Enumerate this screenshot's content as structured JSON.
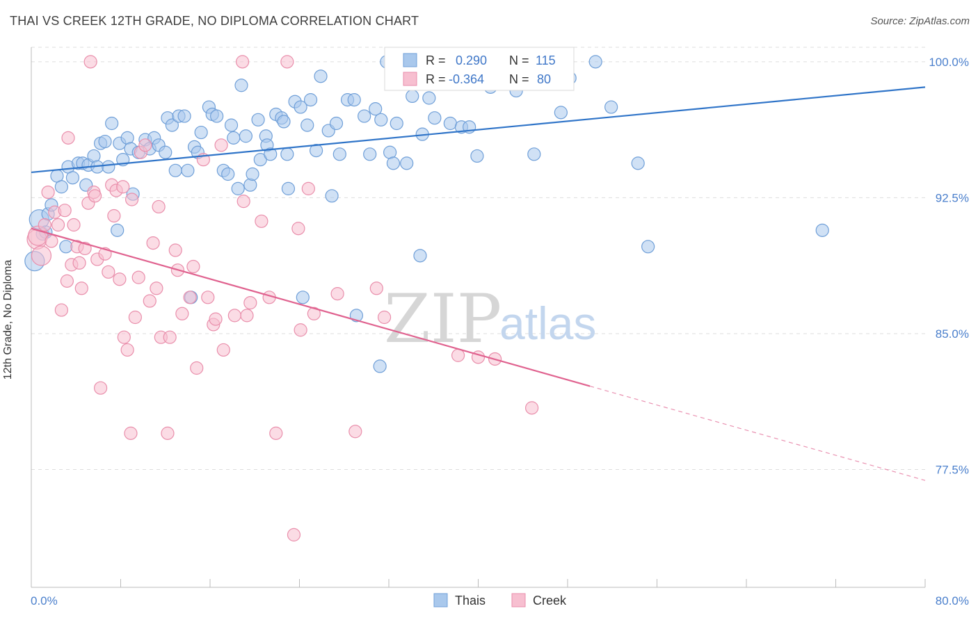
{
  "title": "THAI VS CREEK 12TH GRADE, NO DIPLOMA CORRELATION CHART",
  "source": "Source: ZipAtlas.com",
  "watermark": {
    "zip": "ZIP",
    "atlas": "atlas"
  },
  "colors": {
    "thais_fill": "#a9c8ec",
    "thais_stroke": "#6f9fd8",
    "thais_line": "#2f74c8",
    "creek_fill": "#f7bfd0",
    "creek_stroke": "#e98eab",
    "creek_line": "#e0628f",
    "tick_label": "#4a7fcc",
    "grid": "#dddddd"
  },
  "legend_top": {
    "thais": {
      "r_label": "R =",
      "r_value": "0.290",
      "n_label": "N =",
      "n_value": "115"
    },
    "creek": {
      "r_label": "R =",
      "r_value": "-0.364",
      "n_label": "N =",
      "n_value": "80"
    }
  },
  "legend_bottom": {
    "thais": "Thais",
    "creek": "Creek"
  },
  "chart_data": {
    "type": "scatter",
    "title": "THAI VS CREEK 12TH GRADE, NO DIPLOMA CORRELATION CHART",
    "xlabel": "",
    "ylabel": "12th Grade, No Diploma",
    "xlim": [
      0,
      80
    ],
    "ylim": [
      71,
      100.8
    ],
    "x_tick_labels": [
      "0.0%",
      "80.0%"
    ],
    "y_ticks": [
      77.5,
      85.0,
      92.5,
      100.0
    ],
    "y_tick_labels": [
      "77.5%",
      "85.0%",
      "92.5%",
      "100.0%"
    ],
    "grid": true,
    "legend_placement": "top-center",
    "series": [
      {
        "name": "Thais",
        "trend": {
          "x": [
            0,
            80
          ],
          "y": [
            93.9,
            98.6
          ]
        },
        "points": [
          [
            0.3,
            89.0
          ],
          [
            0.7,
            91.3
          ],
          [
            1.0,
            90.5
          ],
          [
            1.3,
            90.6
          ],
          [
            1.5,
            91.6
          ],
          [
            1.8,
            92.1
          ],
          [
            2.3,
            93.7
          ],
          [
            2.7,
            93.1
          ],
          [
            3.1,
            89.8
          ],
          [
            3.3,
            94.2
          ],
          [
            3.7,
            93.6
          ],
          [
            4.2,
            94.4
          ],
          [
            4.6,
            94.4
          ],
          [
            4.9,
            93.2
          ],
          [
            5.1,
            94.3
          ],
          [
            5.6,
            94.8
          ],
          [
            5.9,
            94.2
          ],
          [
            6.2,
            95.5
          ],
          [
            6.6,
            95.6
          ],
          [
            6.9,
            94.2
          ],
          [
            7.2,
            96.6
          ],
          [
            7.7,
            90.7
          ],
          [
            7.9,
            95.5
          ],
          [
            8.2,
            94.6
          ],
          [
            8.6,
            95.8
          ],
          [
            8.9,
            95.2
          ],
          [
            9.1,
            92.7
          ],
          [
            9.6,
            95.0
          ],
          [
            10.2,
            95.7
          ],
          [
            10.6,
            95.2
          ],
          [
            11.0,
            95.8
          ],
          [
            11.4,
            95.4
          ],
          [
            12.0,
            95.0
          ],
          [
            12.2,
            96.9
          ],
          [
            12.6,
            96.5
          ],
          [
            12.9,
            94.0
          ],
          [
            13.2,
            97.0
          ],
          [
            13.7,
            97.0
          ],
          [
            14.0,
            94.0
          ],
          [
            14.3,
            87.0
          ],
          [
            14.6,
            95.3
          ],
          [
            14.9,
            95.0
          ],
          [
            15.2,
            96.1
          ],
          [
            15.9,
            97.5
          ],
          [
            16.2,
            97.1
          ],
          [
            16.6,
            97.0
          ],
          [
            17.2,
            94.0
          ],
          [
            17.6,
            93.8
          ],
          [
            17.9,
            96.5
          ],
          [
            18.1,
            95.8
          ],
          [
            18.5,
            93.0
          ],
          [
            18.8,
            98.7
          ],
          [
            19.2,
            95.9
          ],
          [
            19.6,
            93.2
          ],
          [
            19.8,
            93.8
          ],
          [
            20.3,
            96.8
          ],
          [
            20.5,
            94.6
          ],
          [
            21.0,
            95.9
          ],
          [
            21.1,
            95.4
          ],
          [
            21.4,
            94.9
          ],
          [
            21.9,
            97.1
          ],
          [
            22.4,
            96.9
          ],
          [
            22.6,
            96.7
          ],
          [
            22.9,
            94.9
          ],
          [
            23.0,
            93.0
          ],
          [
            23.6,
            97.8
          ],
          [
            24.1,
            97.5
          ],
          [
            24.3,
            87.0
          ],
          [
            24.7,
            96.5
          ],
          [
            25.0,
            97.9
          ],
          [
            25.5,
            95.1
          ],
          [
            25.9,
            99.2
          ],
          [
            26.6,
            96.2
          ],
          [
            26.9,
            92.6
          ],
          [
            27.3,
            96.6
          ],
          [
            27.6,
            94.9
          ],
          [
            28.3,
            97.9
          ],
          [
            28.9,
            97.9
          ],
          [
            29.1,
            86.0
          ],
          [
            29.8,
            97.0
          ],
          [
            30.3,
            94.9
          ],
          [
            30.8,
            97.4
          ],
          [
            31.2,
            83.2
          ],
          [
            31.3,
            96.8
          ],
          [
            31.8,
            100.0
          ],
          [
            32.1,
            95.0
          ],
          [
            32.4,
            94.4
          ],
          [
            32.7,
            96.6
          ],
          [
            33.2,
            99.6
          ],
          [
            33.6,
            94.4
          ],
          [
            34.1,
            98.1
          ],
          [
            34.3,
            100.0
          ],
          [
            34.8,
            89.3
          ],
          [
            35.0,
            96.0
          ],
          [
            35.6,
            98.0
          ],
          [
            36.1,
            96.9
          ],
          [
            36.6,
            99.0
          ],
          [
            37.5,
            96.6
          ],
          [
            38.5,
            96.4
          ],
          [
            39.2,
            96.4
          ],
          [
            39.8,
            99.3
          ],
          [
            39.9,
            94.8
          ],
          [
            40.6,
            100.0
          ],
          [
            41.1,
            98.6
          ],
          [
            42.6,
            99.2
          ],
          [
            43.4,
            98.4
          ],
          [
            45.0,
            94.9
          ],
          [
            47.4,
            97.2
          ],
          [
            48.2,
            99.1
          ],
          [
            50.5,
            100.0
          ],
          [
            51.9,
            97.5
          ],
          [
            54.3,
            94.4
          ],
          [
            55.2,
            89.8
          ],
          [
            70.8,
            90.7
          ],
          [
            65.0,
            101.0
          ]
        ]
      },
      {
        "name": "Creek",
        "trend": {
          "x": [
            0,
            50
          ],
          "y": [
            90.8,
            82.1
          ],
          "dash_x": [
            50,
            80
          ],
          "dash_y": [
            82.1,
            76.9
          ]
        },
        "points": [
          [
            0.5,
            90.2
          ],
          [
            0.6,
            90.4
          ],
          [
            0.9,
            89.3
          ],
          [
            1.2,
            91.0
          ],
          [
            1.5,
            92.8
          ],
          [
            1.8,
            90.1
          ],
          [
            2.1,
            91.7
          ],
          [
            2.4,
            91.0
          ],
          [
            2.7,
            86.3
          ],
          [
            3.0,
            91.8
          ],
          [
            3.2,
            87.9
          ],
          [
            3.3,
            95.8
          ],
          [
            3.6,
            88.8
          ],
          [
            3.8,
            91.0
          ],
          [
            4.1,
            89.8
          ],
          [
            4.3,
            88.9
          ],
          [
            4.5,
            87.5
          ],
          [
            4.8,
            89.7
          ],
          [
            5.1,
            92.2
          ],
          [
            5.3,
            100.0
          ],
          [
            5.6,
            92.8
          ],
          [
            5.7,
            92.6
          ],
          [
            5.9,
            89.1
          ],
          [
            6.2,
            82.0
          ],
          [
            6.6,
            89.4
          ],
          [
            6.9,
            88.4
          ],
          [
            7.2,
            93.2
          ],
          [
            7.4,
            91.5
          ],
          [
            7.6,
            92.9
          ],
          [
            7.9,
            88.0
          ],
          [
            8.2,
            93.1
          ],
          [
            8.3,
            84.8
          ],
          [
            8.6,
            84.1
          ],
          [
            8.9,
            79.5
          ],
          [
            9.0,
            92.4
          ],
          [
            9.3,
            85.9
          ],
          [
            9.6,
            88.1
          ],
          [
            9.8,
            95.0
          ],
          [
            10.2,
            95.4
          ],
          [
            10.6,
            86.8
          ],
          [
            10.9,
            90.0
          ],
          [
            11.2,
            87.5
          ],
          [
            11.4,
            92.0
          ],
          [
            11.6,
            84.8
          ],
          [
            12.2,
            79.5
          ],
          [
            12.4,
            84.8
          ],
          [
            12.9,
            89.6
          ],
          [
            13.1,
            88.5
          ],
          [
            13.5,
            86.1
          ],
          [
            14.2,
            87.0
          ],
          [
            14.5,
            88.7
          ],
          [
            14.8,
            83.1
          ],
          [
            15.4,
            94.6
          ],
          [
            15.8,
            87.0
          ],
          [
            16.3,
            85.5
          ],
          [
            16.5,
            85.8
          ],
          [
            17.0,
            95.4
          ],
          [
            17.2,
            84.1
          ],
          [
            18.2,
            86.0
          ],
          [
            18.9,
            100.0
          ],
          [
            19.0,
            92.3
          ],
          [
            19.3,
            86.0
          ],
          [
            19.6,
            86.7
          ],
          [
            20.6,
            91.2
          ],
          [
            21.3,
            87.0
          ],
          [
            21.9,
            79.5
          ],
          [
            22.9,
            100.0
          ],
          [
            23.5,
            73.9
          ],
          [
            23.9,
            90.8
          ],
          [
            24.1,
            85.2
          ],
          [
            24.8,
            93.0
          ],
          [
            25.3,
            86.1
          ],
          [
            27.4,
            87.2
          ],
          [
            29.0,
            79.6
          ],
          [
            30.9,
            87.5
          ],
          [
            31.6,
            85.9
          ],
          [
            38.2,
            83.8
          ],
          [
            40.0,
            83.7
          ],
          [
            44.8,
            80.9
          ],
          [
            41.5,
            83.6
          ]
        ]
      }
    ]
  }
}
